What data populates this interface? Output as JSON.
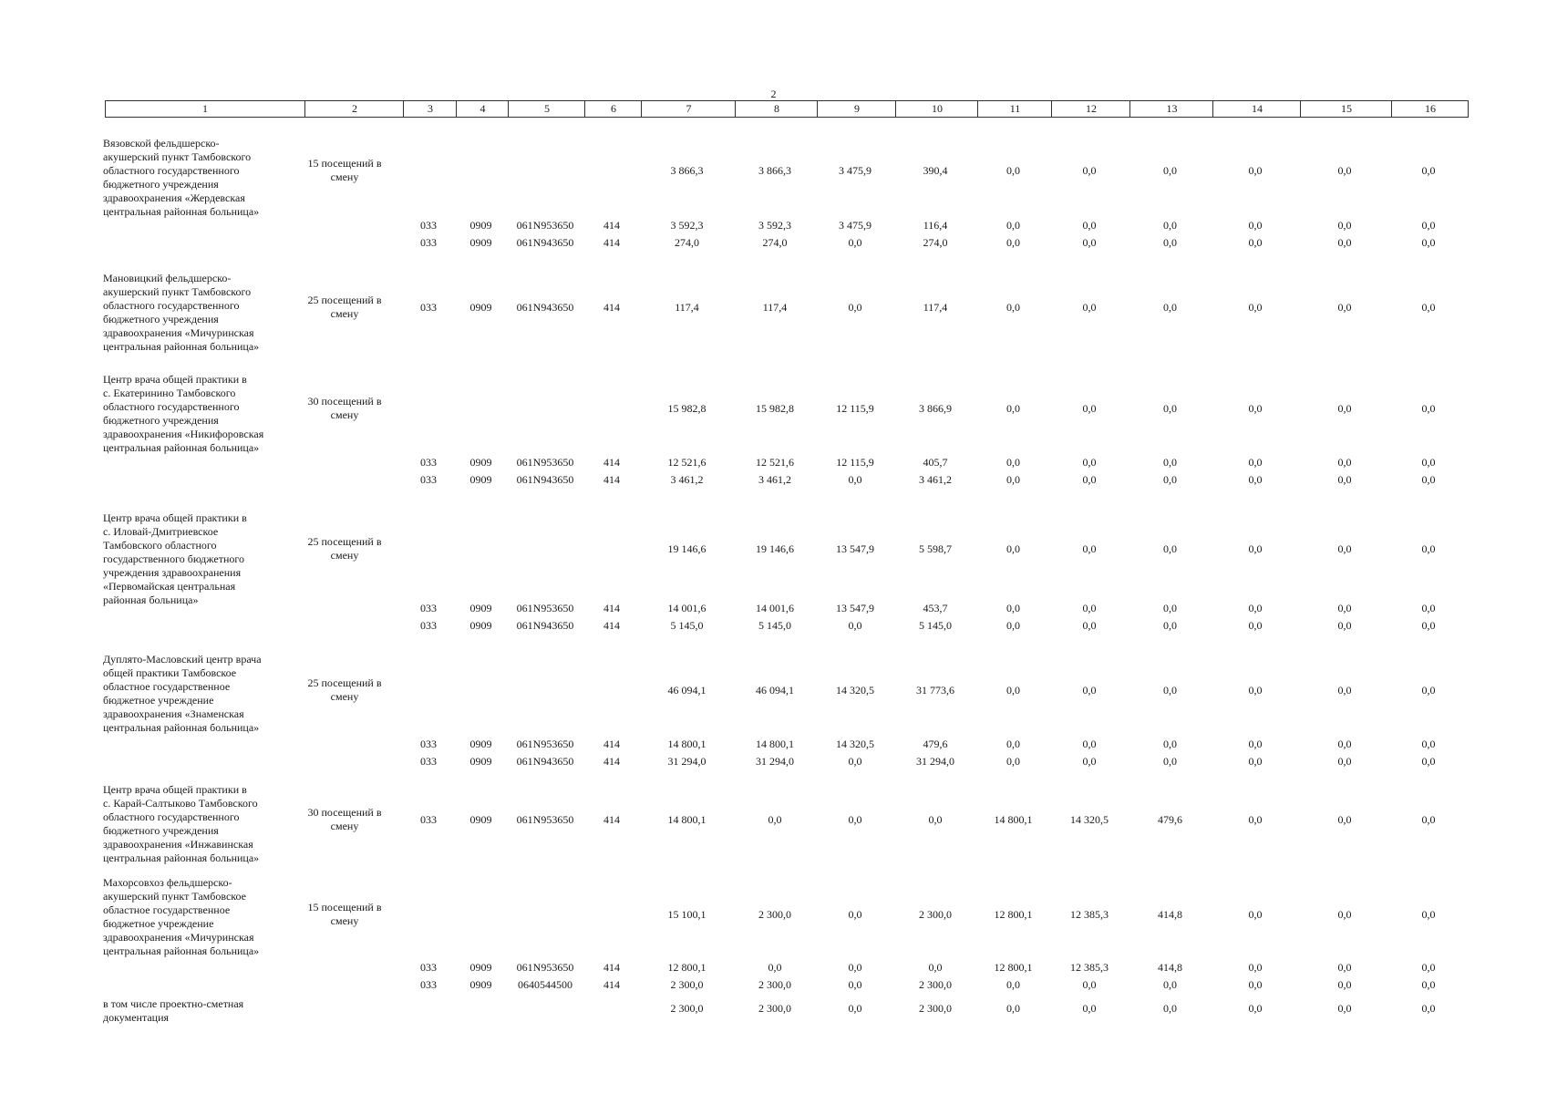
{
  "page_number": "2",
  "header_cells": [
    "1",
    "2",
    "3",
    "4",
    "5",
    "6",
    "7",
    "8",
    "9",
    "10",
    "11",
    "12",
    "13",
    "14",
    "15",
    "16"
  ],
  "blocks": [
    {
      "name": "Вязовской фельдшерско-\nакушерский пункт Тамбовского\nобластного государственного\nбюджетного учреждения\nздравоохранения «Жердевская\nцентральная районная больница»",
      "capacity": "15 посещений в\nсмену",
      "main": {
        "code": [
          "",
          "",
          "",
          ""
        ],
        "values": [
          "3 866,3",
          "3 866,3",
          "3 475,9",
          "390,4",
          "0,0",
          "0,0",
          "0,0",
          "0,0",
          "0,0",
          "0,0"
        ]
      },
      "subrows": [
        {
          "code": [
            "033",
            "0909",
            "061N953650",
            "414"
          ],
          "values": [
            "3 592,3",
            "3 592,3",
            "3 475,9",
            "116,4",
            "0,0",
            "0,0",
            "0,0",
            "0,0",
            "0,0",
            "0,0"
          ]
        },
        {
          "code": [
            "033",
            "0909",
            "061N943650",
            "414"
          ],
          "values": [
            "274,0",
            "274,0",
            "0,0",
            "274,0",
            "0,0",
            "0,0",
            "0,0",
            "0,0",
            "0,0",
            "0,0"
          ]
        }
      ]
    },
    {
      "name": "Мановицкий фельдшерско-\nакушерский пункт Тамбовского\nобластного государственного\nбюджетного учреждения\nздравоохранения «Мичуринская\nцентральная районная больница»",
      "capacity": "25 посещений в\nсмену",
      "main": {
        "code": [
          "033",
          "0909",
          "061N943650",
          "414"
        ],
        "values": [
          "117,4",
          "117,4",
          "0,0",
          "117,4",
          "0,0",
          "0,0",
          "0,0",
          "0,0",
          "0,0",
          "0,0"
        ]
      },
      "subrows": []
    },
    {
      "name": "Центр врача общей практики в\nс. Екатеринино Тамбовского\nобластного государственного\nбюджетного учреждения\nздравоохранения «Никифоровская\nцентральная районная больница»",
      "capacity": "30 посещений в\nсмену",
      "main": {
        "code": [
          "",
          "",
          "",
          ""
        ],
        "values": [
          "15 982,8",
          "15 982,8",
          "12 115,9",
          "3 866,9",
          "0,0",
          "0,0",
          "0,0",
          "0,0",
          "0,0",
          "0,0"
        ]
      },
      "subrows": [
        {
          "code": [
            "033",
            "0909",
            "061N953650",
            "414"
          ],
          "values": [
            "12 521,6",
            "12 521,6",
            "12 115,9",
            "405,7",
            "0,0",
            "0,0",
            "0,0",
            "0,0",
            "0,0",
            "0,0"
          ]
        },
        {
          "code": [
            "033",
            "0909",
            "061N943650",
            "414"
          ],
          "values": [
            "3 461,2",
            "3 461,2",
            "0,0",
            "3 461,2",
            "0,0",
            "0,0",
            "0,0",
            "0,0",
            "0,0",
            "0,0"
          ]
        }
      ]
    },
    {
      "name": "Центр врача общей практики в\nс. Иловай-Дмитриевское\nТамбовского областного\nгосударственного бюджетного\nучреждения здравоохранения\n«Первомайская центральная\nрайонная больница»",
      "capacity": "25 посещений в\nсмену",
      "main": {
        "code": [
          "",
          "",
          "",
          ""
        ],
        "values": [
          "19 146,6",
          "19 146,6",
          "13 547,9",
          "5 598,7",
          "0,0",
          "0,0",
          "0,0",
          "0,0",
          "0,0",
          "0,0"
        ]
      },
      "subrows": [
        {
          "code": [
            "033",
            "0909",
            "061N953650",
            "414"
          ],
          "values": [
            "14 001,6",
            "14 001,6",
            "13 547,9",
            "453,7",
            "0,0",
            "0,0",
            "0,0",
            "0,0",
            "0,0",
            "0,0"
          ]
        },
        {
          "code": [
            "033",
            "0909",
            "061N943650",
            "414"
          ],
          "values": [
            "5 145,0",
            "5 145,0",
            "0,0",
            "5 145,0",
            "0,0",
            "0,0",
            "0,0",
            "0,0",
            "0,0",
            "0,0"
          ]
        }
      ]
    },
    {
      "name": "Дуплято-Масловский центр врача\nобщей практики Тамбовское\nобластное государственное\nбюджетное учреждение\nздравоохранения «Знаменская\nцентральная районная больница»",
      "capacity": "25 посещений в\nсмену",
      "main": {
        "code": [
          "",
          "",
          "",
          ""
        ],
        "values": [
          "46 094,1",
          "46 094,1",
          "14 320,5",
          "31 773,6",
          "0,0",
          "0,0",
          "0,0",
          "0,0",
          "0,0",
          "0,0"
        ]
      },
      "subrows": [
        {
          "code": [
            "033",
            "0909",
            "061N953650",
            "414"
          ],
          "values": [
            "14 800,1",
            "14 800,1",
            "14 320,5",
            "479,6",
            "0,0",
            "0,0",
            "0,0",
            "0,0",
            "0,0",
            "0,0"
          ]
        },
        {
          "code": [
            "033",
            "0909",
            "061N943650",
            "414"
          ],
          "values": [
            "31 294,0",
            "31 294,0",
            "0,0",
            "31 294,0",
            "0,0",
            "0,0",
            "0,0",
            "0,0",
            "0,0",
            "0,0"
          ]
        }
      ]
    },
    {
      "name": "Центр врача общей практики в\nс. Карай-Салтыково Тамбовского\nобластного государственного\nбюджетного учреждения\nздравоохранения «Инжавинская\nцентральная районная больница»",
      "capacity": "30 посещений в\nсмену",
      "main": {
        "code": [
          "033",
          "0909",
          "061N953650",
          "414"
        ],
        "values": [
          "14 800,1",
          "0,0",
          "0,0",
          "0,0",
          "14 800,1",
          "14 320,5",
          "479,6",
          "0,0",
          "0,0",
          "0,0"
        ]
      },
      "subrows": []
    },
    {
      "name": "Махорсовхоз фельдшерско-\nакушерский пункт Тамбовское\nобластное государственное\nбюджетное учреждение\nздравоохранения «Мичуринская\nцентральная районная больница»",
      "capacity": "15 посещений в\nсмену",
      "main": {
        "code": [
          "",
          "",
          "",
          ""
        ],
        "values": [
          "15 100,1",
          "2 300,0",
          "0,0",
          "2 300,0",
          "12 800,1",
          "12 385,3",
          "414,8",
          "0,0",
          "0,0",
          "0,0"
        ]
      },
      "subrows": [
        {
          "code": [
            "033",
            "0909",
            "061N953650",
            "414"
          ],
          "values": [
            "12 800,1",
            "0,0",
            "0,0",
            "0,0",
            "12 800,1",
            "12 385,3",
            "414,8",
            "0,0",
            "0,0",
            "0,0"
          ]
        },
        {
          "code": [
            "033",
            "0909",
            "0640544500",
            "414"
          ],
          "values": [
            "2 300,0",
            "2 300,0",
            "0,0",
            "2 300,0",
            "0,0",
            "0,0",
            "0,0",
            "0,0",
            "0,0",
            "0,0"
          ]
        }
      ]
    },
    {
      "name": "в том числе проектно-сметная\nдокументация",
      "capacity": "",
      "main": {
        "code": [
          "",
          "",
          "",
          ""
        ],
        "values": [
          "2 300,0",
          "2 300,0",
          "0,0",
          "2 300,0",
          "0,0",
          "0,0",
          "0,0",
          "0,0",
          "0,0",
          "0,0"
        ]
      },
      "subrows": []
    }
  ]
}
